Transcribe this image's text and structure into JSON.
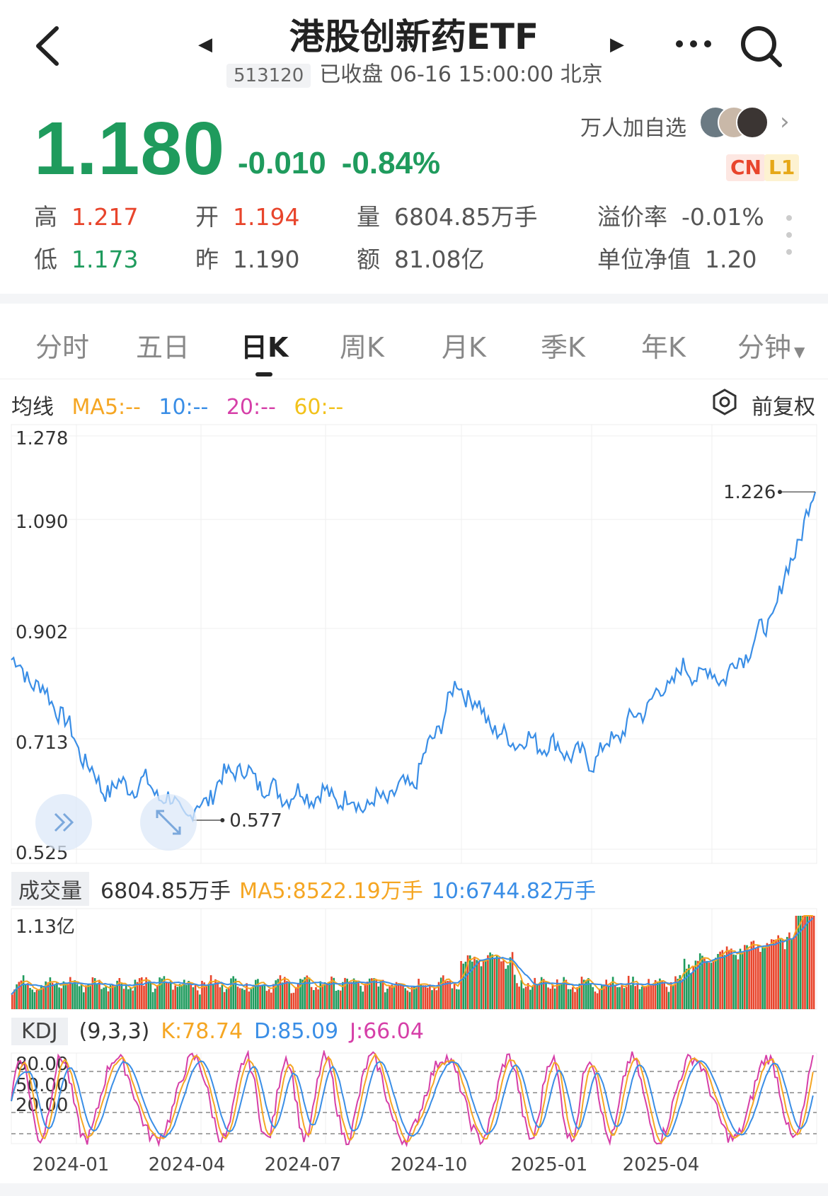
{
  "header": {
    "title": "港股创新药ETF",
    "code": "513120",
    "status": "已收盘 06-16 15:00:00 北京"
  },
  "quote": {
    "price": "1.180",
    "change": "-0.010",
    "change_pct": "-0.84%",
    "watchers": "万人加自选",
    "badge_cn": "CN",
    "badge_l1": "L1",
    "high_label": "高",
    "high": "1.217",
    "open_label": "开",
    "open": "1.194",
    "volume_label": "量",
    "volume": "6804.85万手",
    "premium_label": "溢价率",
    "premium": "-0.01%",
    "low_label": "低",
    "low": "1.173",
    "prev_label": "昨",
    "prev": "1.190",
    "amount_label": "额",
    "amount": "81.08亿",
    "nav_label": "单位净值",
    "nav": "1.20"
  },
  "tabs": [
    "分时",
    "五日",
    "日K",
    "周K",
    "月K",
    "季K",
    "年K",
    "分钟"
  ],
  "active_tab": "日K",
  "ma": {
    "label": "均线",
    "ma5": "MA5:--",
    "ma10": "10:--",
    "ma20": "20:--",
    "ma60": "60:--",
    "adjust": "前复权"
  },
  "volume_panel": {
    "label": "成交量",
    "value": "6804.85万手",
    "ma5": "MA5:8522.19万手",
    "ma10": "10:6744.82万手",
    "axis_max": "1.13亿"
  },
  "kdj_panel": {
    "label": "KDJ",
    "params": "(9,3,3)",
    "k": "K:78.74",
    "d": "D:85.09",
    "j": "J:66.04",
    "levels": [
      "80.00",
      "50.00",
      "20.00"
    ]
  },
  "colors": {
    "up": "#e8452c",
    "down": "#1f9b5d",
    "line": "#3a8ee6",
    "ma5": "#f5a623",
    "ma10": "#3a8ee6",
    "ma20": "#d63fa8",
    "ma60": "#f2c21b"
  },
  "chart_data": {
    "type": "line",
    "y_ticks": [
      "1.278",
      "1.090",
      "0.902",
      "0.713",
      "0.525"
    ],
    "ylim": [
      0.525,
      1.278
    ],
    "x_ticks": [
      "2024-01",
      "2024-04",
      "2024-07",
      "2024-10",
      "2025-01",
      "2025-04"
    ],
    "max_label": "1.226",
    "min_label": "0.577",
    "x": [
      "2023-12",
      "2024-01",
      "2024-02",
      "2024-03",
      "2024-04",
      "2024-05",
      "2024-06",
      "2024-07",
      "2024-08",
      "2024-09",
      "2024-10",
      "2024-11",
      "2024-12",
      "2025-01",
      "2025-02",
      "2025-03",
      "2025-04",
      "2025-05",
      "2025-06"
    ],
    "values": [
      0.88,
      0.8,
      0.65,
      0.66,
      0.6,
      0.69,
      0.64,
      0.64,
      0.62,
      0.66,
      0.84,
      0.74,
      0.73,
      0.7,
      0.78,
      0.86,
      0.85,
      0.95,
      1.18
    ]
  }
}
